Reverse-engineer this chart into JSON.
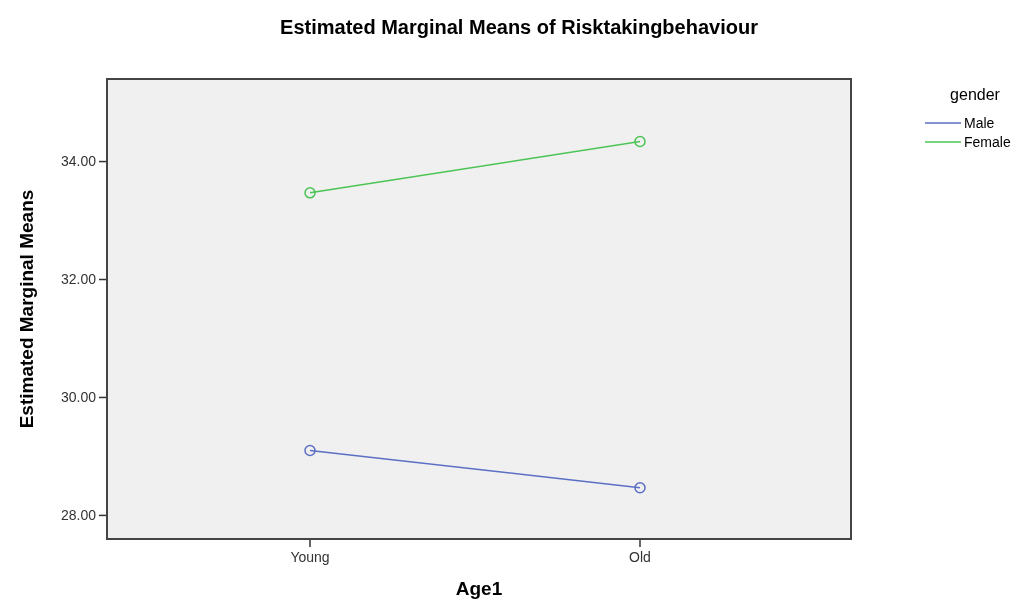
{
  "chart_data": {
    "type": "line",
    "title": "Estimated Marginal Means of Risktakingbehaviour",
    "xlabel": "Age1",
    "ylabel": "Estimated Marginal Means",
    "legend_title": "gender",
    "categories": [
      "Young",
      "Old"
    ],
    "series": [
      {
        "name": "Male",
        "color": "#5b6fc4",
        "values": [
          29.1,
          28.47
        ]
      },
      {
        "name": "Female",
        "color": "#4cc455",
        "values": [
          33.47,
          34.34
        ]
      }
    ],
    "ylim": [
      27.6,
      35.4
    ],
    "yticks": [
      {
        "value": 28,
        "label": "28.00"
      },
      {
        "value": 30,
        "label": "30.00"
      },
      {
        "value": 32,
        "label": "32.00"
      },
      {
        "value": 34,
        "label": "34.00"
      }
    ],
    "grid": false,
    "legend": "top right",
    "marker": "circle",
    "line_style": "solid"
  }
}
